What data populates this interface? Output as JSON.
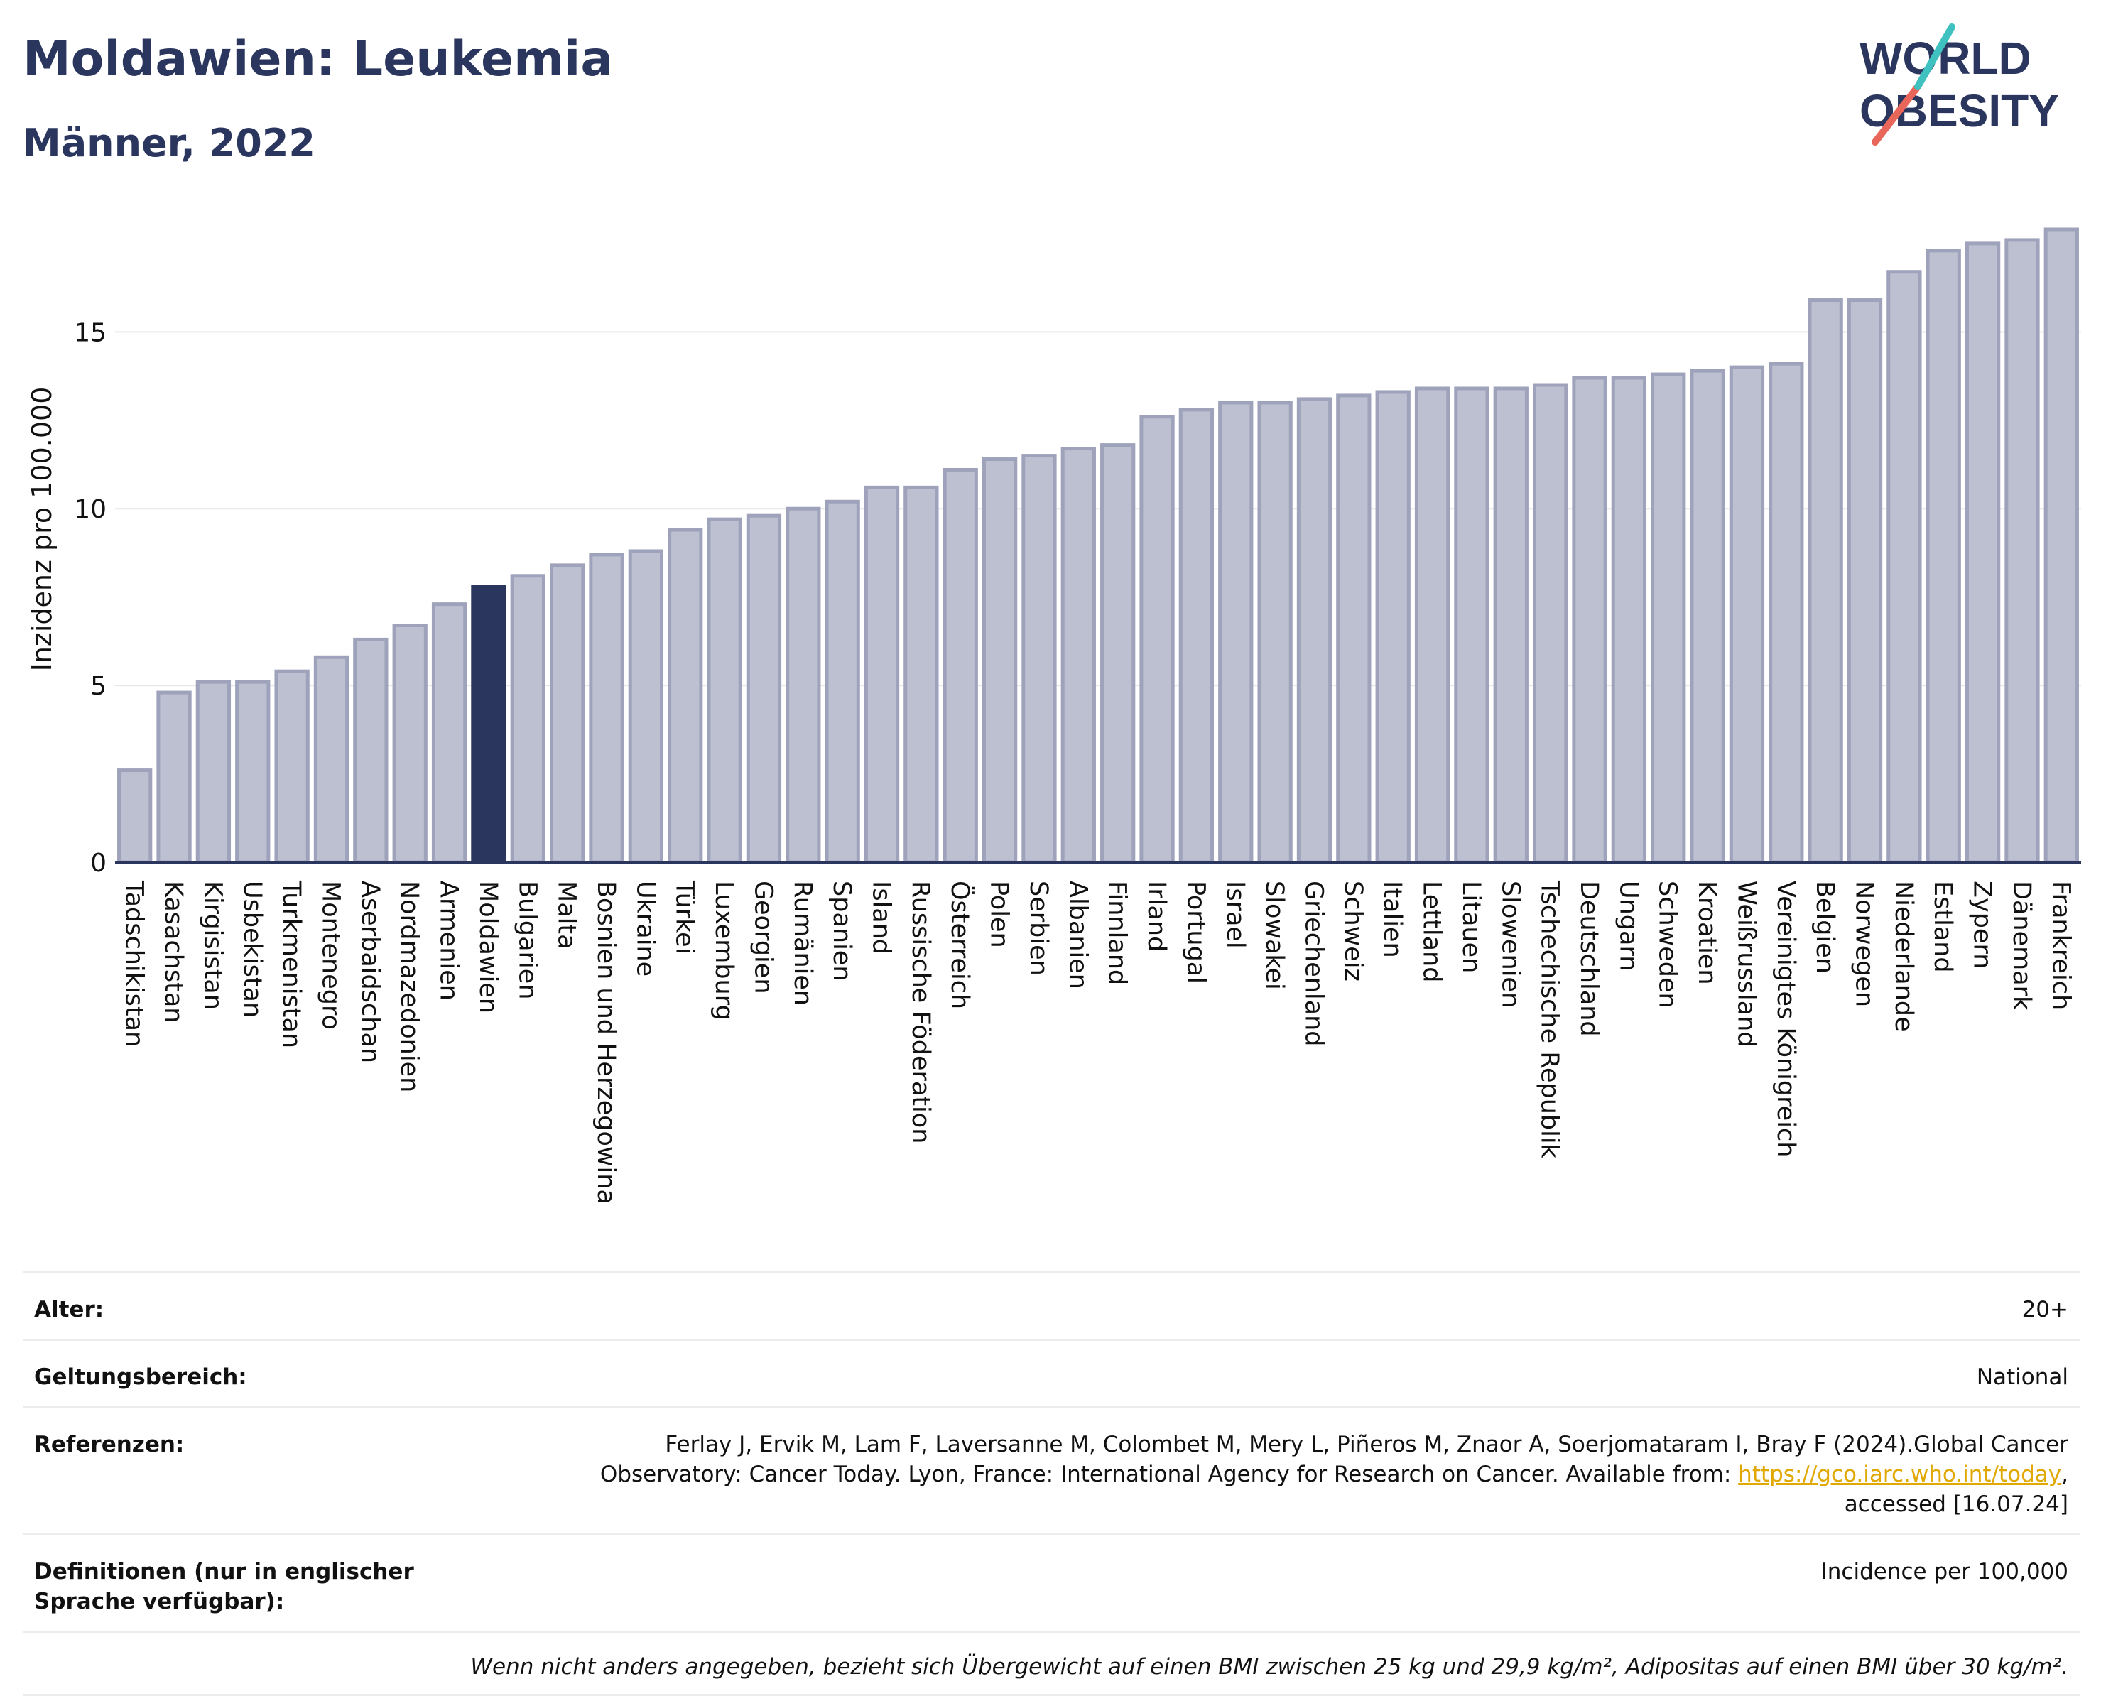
{
  "header": {
    "title": "Moldawien: Leukemia",
    "subtitle": "Männer, 2022"
  },
  "logo": {
    "line1": "WORLD",
    "line2": "OBESITY",
    "accent_teal": "#3fc1c0",
    "accent_red": "#e8665a"
  },
  "colors": {
    "bar": "#bcc0d0",
    "bar_border": "#9ea3bb",
    "highlight": "#2b365f",
    "text": "#2b365f"
  },
  "chart_data": {
    "type": "bar",
    "ylabel": "Inzidenz pro 100.000",
    "ylim": [
      0,
      18
    ],
    "yticks": [
      0,
      5,
      10,
      15
    ],
    "grid": true,
    "highlight": "Moldawien",
    "categories": [
      "Tadschikistan",
      "Kasachstan",
      "Kirgisistan",
      "Usbekistan",
      "Turkmenistan",
      "Montenegro",
      "Aserbaidschan",
      "Nordmazedonien",
      "Armenien",
      "Moldawien",
      "Bulgarien",
      "Malta",
      "Bosnien und Herzegowina",
      "Ukraine",
      "Türkei",
      "Luxemburg",
      "Georgien",
      "Rumänien",
      "Spanien",
      "Island",
      "Russische Föderation",
      "Österreich",
      "Polen",
      "Serbien",
      "Albanien",
      "Finnland",
      "Irland",
      "Portugal",
      "Israel",
      "Slowakei",
      "Griechenland",
      "Schweiz",
      "Italien",
      "Lettland",
      "Litauen",
      "Slowenien",
      "Tschechische Republik",
      "Deutschland",
      "Ungarn",
      "Schweden",
      "Kroatien",
      "Weißrussland",
      "Vereinigtes Königreich",
      "Belgien",
      "Norwegen",
      "Niederlande",
      "Estland",
      "Zypern",
      "Dänemark",
      "Frankreich"
    ],
    "values": [
      2.6,
      4.8,
      5.1,
      5.1,
      5.4,
      5.8,
      6.3,
      6.7,
      7.3,
      7.8,
      8.1,
      8.4,
      8.7,
      8.8,
      9.4,
      9.7,
      9.8,
      10.0,
      10.2,
      10.6,
      10.6,
      11.1,
      11.4,
      11.5,
      11.7,
      11.8,
      12.6,
      12.8,
      13.0,
      13.0,
      13.1,
      13.2,
      13.3,
      13.4,
      13.4,
      13.4,
      13.5,
      13.7,
      13.7,
      13.8,
      13.9,
      14.0,
      14.1,
      15.9,
      15.9,
      16.7,
      17.3,
      17.5,
      17.6,
      17.9
    ]
  },
  "info": {
    "alter_label": "Alter:",
    "alter_value": "20+",
    "scope_label": "Geltungsbereich:",
    "scope_value": "National",
    "ref_label": "Referenzen:",
    "ref_text_1": "Ferlay J, Ervik M, Lam F, Laversanne M, Colombet M, Mery L, Piñeros M, Znaor A, Soerjomataram I, Bray F (2024).Global Cancer Observatory: Cancer Today. Lyon, France: International Agency for Research on Cancer. Available from:",
    "ref_link": "https://gco.iarc.who.int/today",
    "ref_text_2": ", accessed [16.07.24]",
    "def_label": "Definitionen (nur in englischer Sprache verfügbar):",
    "def_value": "Incidence per 100,000",
    "footnote": "Wenn nicht anders angegeben, bezieht sich Übergewicht auf einen BMI zwischen 25 kg und 29,9 kg/m², Adipositas auf einen BMI über 30 kg/m²."
  }
}
